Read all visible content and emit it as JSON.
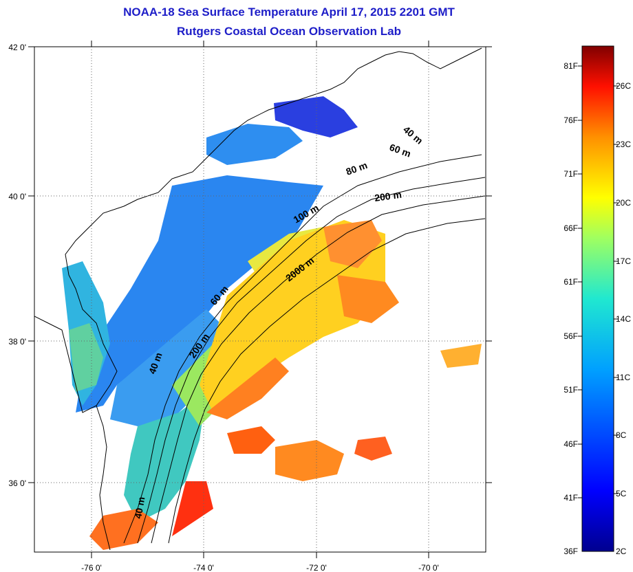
{
  "title": {
    "line1": "NOAA-18 Sea Surface Temperature April 17, 2015 2201 GMT",
    "line2": "Rutgers Coastal Ocean Observation Lab"
  },
  "map": {
    "lon_labels": [
      "-76 0'",
      "-74 0'",
      "-72 0'",
      "-70 0'"
    ],
    "lat_labels": [
      "42 0'",
      "40 0'",
      "38 0'",
      "36 0'"
    ],
    "contour_labels": [
      "40 m",
      "60 m",
      "80 m",
      "200 m",
      "100 m",
      "2000 m",
      "60 m",
      "200 m",
      "40 m",
      "40 m"
    ]
  },
  "colorbar": {
    "f_labels": [
      "81F",
      "76F",
      "71F",
      "66F",
      "61F",
      "56F",
      "51F",
      "46F",
      "41F",
      "36F"
    ],
    "c_labels": [
      "26C",
      "23C",
      "20C",
      "17C",
      "14C",
      "11C",
      "8C",
      "5C",
      "2C"
    ],
    "colors": [
      "#00008f",
      "#0000ff",
      "#0080ff",
      "#00ffff",
      "#80ff80",
      "#ffff00",
      "#ff8000",
      "#ff0000",
      "#800000"
    ]
  }
}
